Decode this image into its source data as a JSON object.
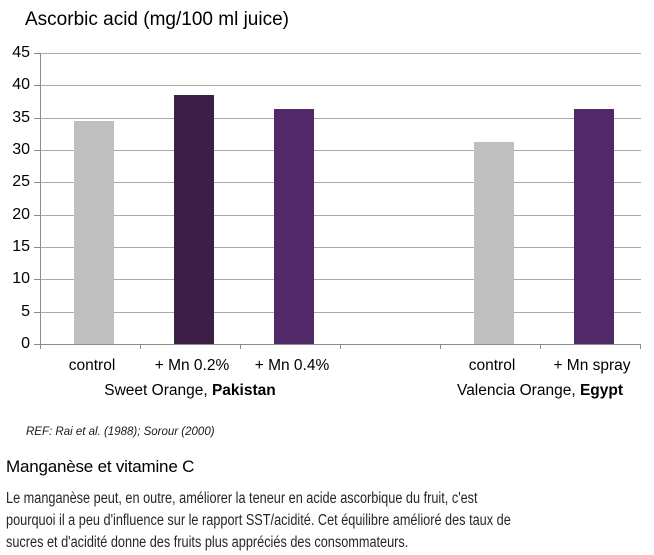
{
  "chart": {
    "title": "Ascorbic acid (mg/100 ml juice)",
    "ref_note": "REF: Rai et al. (1988); Sorour (2000)"
  },
  "chart_data": {
    "type": "bar",
    "title": "Ascorbic acid (mg/100 ml juice)",
    "categories": [
      "control",
      "+ Mn 0.2%",
      "+ Mn 0.4%",
      "control",
      "+ Mn spray"
    ],
    "values": [
      34.5,
      38.5,
      36.4,
      31.2,
      36.3
    ],
    "slots": [
      0,
      1,
      2,
      4,
      5
    ],
    "num_slots": 6,
    "bar_colors": [
      "#bfbfbf",
      "#3c1e47",
      "#512968",
      "#bfbfbf",
      "#512968"
    ],
    "groups": [
      {
        "label_plain": "Sweet Orange, ",
        "label_bold": "Pakistan",
        "start_slot": 0,
        "end_slot": 2
      },
      {
        "label_plain": "Valencia Orange, ",
        "label_bold": "Egypt",
        "start_slot": 4,
        "end_slot": 5
      }
    ],
    "xlabel": "",
    "ylabel": "",
    "ylim": [
      0,
      45
    ],
    "yticks": [
      0,
      5,
      10,
      15,
      20,
      25,
      30,
      35,
      40,
      45
    ],
    "grid": true,
    "legend": "none",
    "gridline_color": "#aaaaaa",
    "axis_color": "#8c8c8c"
  },
  "footer": {
    "heading": "Manganèse et vitamine C",
    "paragraph_lines": [
      "Le manganèse peut, en outre, améliorer la teneur en acide ascorbique du fruit, c'est",
      "pourquoi il a peu d'influence sur le rapport SST/acidité. Cet équilibre amélioré des taux de",
      "sucres et d'acidité donne des fruits plus appréciés des consommateurs."
    ]
  }
}
